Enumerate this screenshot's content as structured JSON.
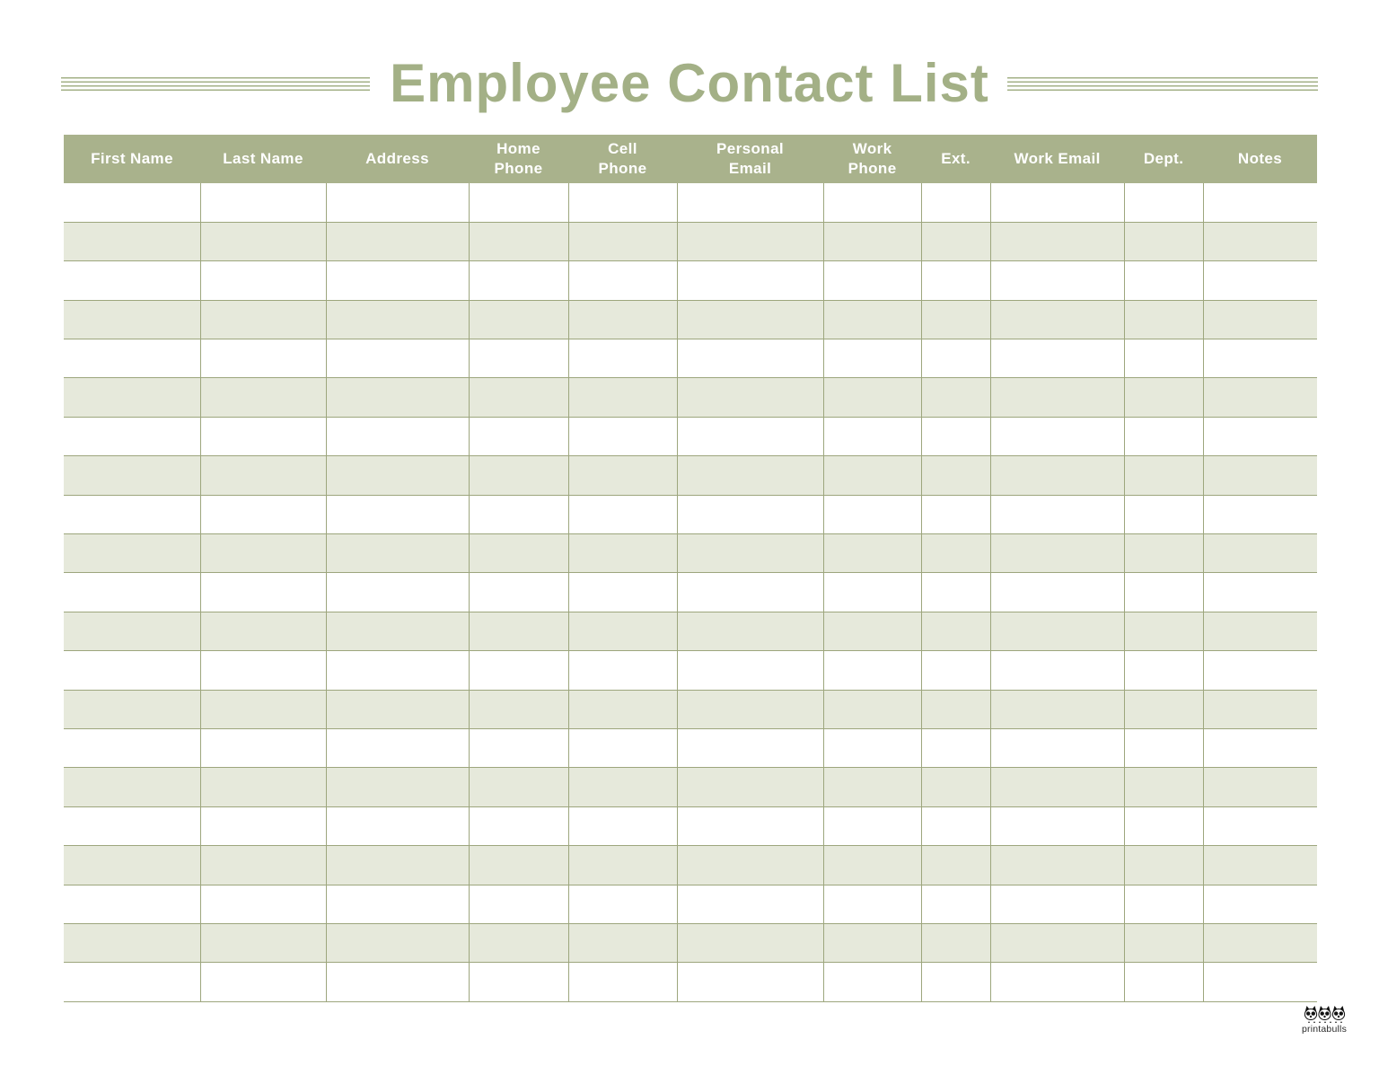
{
  "title": "Employee Contact List",
  "table": {
    "columns": [
      {
        "id": "first-name",
        "label": "First Name",
        "width_pct": 10.89
      },
      {
        "id": "last-name",
        "label": "Last Name",
        "width_pct": 10.03
      },
      {
        "id": "address",
        "label": "Address",
        "width_pct": 11.39
      },
      {
        "id": "home-phone",
        "label": "Home\nPhone",
        "width_pct": 7.95
      },
      {
        "id": "cell-phone",
        "label": "Cell\nPhone",
        "width_pct": 8.67
      },
      {
        "id": "personal-email",
        "label": "Personal\nEmail",
        "width_pct": 11.68
      },
      {
        "id": "work-phone",
        "label": "Work\nPhone",
        "width_pct": 7.81
      },
      {
        "id": "ext",
        "label": "Ext.",
        "width_pct": 5.52
      },
      {
        "id": "work-email",
        "label": "Work Email",
        "width_pct": 10.67
      },
      {
        "id": "dept",
        "label": "Dept.",
        "width_pct": 6.3
      },
      {
        "id": "notes",
        "label": "Notes",
        "width_pct": 9.09
      }
    ],
    "row_count": 21,
    "rows": [],
    "all_cells_blank": true
  },
  "footer": {
    "brand": "printabulls",
    "logo_icon": "three-bulldog-faces"
  },
  "colors": {
    "title_green": "#a3b086",
    "header_bg": "#a9b28c",
    "header_text": "#ffffff",
    "row_alt_bg": "#e6e9db",
    "grid_line": "#9da67d",
    "logo_ink": "#2a2a2a"
  }
}
